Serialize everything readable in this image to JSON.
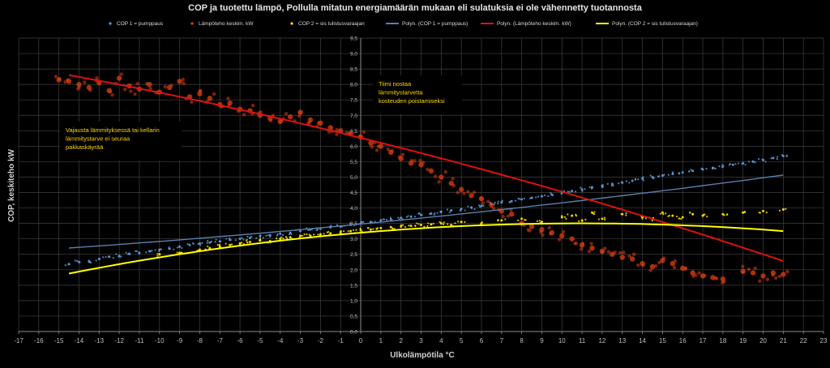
{
  "chart_data": {
    "type": "scatter",
    "title": "COP ja tuotettu lämpö, Pollulla mitatun energiamäärän mukaan eli sulatuksia ei ole vähennetty tuotannosta",
    "xlabel": "Ulkolämpötila °C",
    "ylabel": "COP, keskiteho kW",
    "xlim": [
      -17,
      23
    ],
    "ylim": [
      0,
      9.5
    ],
    "x_ticks": [
      "-17",
      "-16",
      "-15",
      "-14",
      "-13",
      "-12",
      "-11",
      "-10",
      "-9",
      "-8",
      "-7",
      "-6",
      "-5",
      "-4",
      "-3",
      "-2",
      "-1",
      "0",
      "1",
      "2",
      "3",
      "4",
      "5",
      "6",
      "7",
      "8",
      "9",
      "10",
      "11",
      "12",
      "13",
      "14",
      "15",
      "16",
      "17",
      "18",
      "19",
      "20",
      "21",
      "22",
      "23"
    ],
    "y_ticks": [
      "0,0",
      "0,5",
      "1,0",
      "1,5",
      "2,0",
      "2,5",
      "3,0",
      "3,5",
      "4,0",
      "4,5",
      "5,0",
      "5,5",
      "6,0",
      "6,5",
      "7,0",
      "7,5",
      "8,0",
      "8,5",
      "9,0",
      "9,5"
    ],
    "grid": true,
    "legend": [
      {
        "label": "COP 1 = pumppaus",
        "kind": "marker",
        "color": "#5b9bd5"
      },
      {
        "label": "Lämpöteho keskim. kW",
        "kind": "marker",
        "color": "#e04010"
      },
      {
        "label": "COP 2 = sis tulistusvaraajan",
        "kind": "marker",
        "color": "#ffe000"
      },
      {
        "label": "Polyn. (COP 1 = pumppaus)",
        "kind": "line",
        "color": "#5b7fae"
      },
      {
        "label": "Polyn. (Lämpöteho keskim. kW)",
        "kind": "line",
        "color": "#e01010"
      },
      {
        "label": "Polyn. (COP 2 = sis tulistusvaraajan)",
        "kind": "line",
        "color": "#ffff00"
      }
    ],
    "annotations": [
      {
        "lines": [
          "Vajausta lämmityksessä tai kellarin",
          "lämmitystarve ei seuraa",
          "pakkaskäyrää"
        ]
      },
      {
        "lines": [
          "Tiimi nostaa",
          "lämmitystarvetta",
          "kosteuden poistamiseksi"
        ]
      }
    ],
    "series": [
      {
        "name": "COP 1 = pumppaus",
        "color": "#5b9bd5",
        "x": [
          -14.5,
          -14,
          -13.5,
          -13,
          -12.5,
          -12,
          -11.5,
          -11,
          -10.5,
          -10,
          -9.5,
          -9,
          -8.5,
          -8,
          -7.5,
          -7,
          -6.5,
          -6,
          -5.5,
          -5,
          -4.5,
          -4,
          -3.5,
          -3,
          -2.5,
          -2,
          -1.5,
          -1,
          -0.5,
          0,
          0.5,
          1,
          1.5,
          2,
          2.5,
          3,
          3.5,
          4,
          4.5,
          5,
          5.5,
          6,
          6.5,
          7,
          7.5,
          8,
          8.5,
          9,
          9.5,
          10,
          10.5,
          11,
          11.5,
          12,
          12.5,
          13,
          13.5,
          14,
          14.5,
          15,
          15.5,
          16,
          16.5,
          17,
          17.5,
          18,
          18.5,
          19,
          19.5,
          20,
          20.5,
          21
        ],
        "y": [
          2.18,
          2.25,
          2.28,
          2.35,
          2.42,
          2.45,
          2.52,
          2.55,
          2.6,
          2.65,
          2.68,
          2.75,
          2.8,
          2.85,
          2.88,
          2.92,
          2.97,
          3.0,
          3.03,
          3.08,
          3.12,
          3.17,
          3.2,
          3.25,
          3.3,
          3.33,
          3.38,
          3.4,
          3.45,
          3.5,
          3.55,
          3.6,
          3.63,
          3.68,
          3.72,
          3.78,
          3.82,
          3.88,
          3.92,
          3.97,
          4.02,
          4.07,
          4.12,
          4.18,
          4.22,
          4.28,
          4.33,
          4.38,
          4.43,
          4.5,
          4.55,
          4.6,
          4.67,
          4.72,
          4.78,
          4.82,
          4.88,
          4.95,
          5.0,
          5.05,
          5.1,
          5.15,
          5.2,
          5.25,
          5.3,
          5.35,
          5.4,
          5.45,
          5.5,
          5.55,
          5.62,
          5.68
        ]
      },
      {
        "name": "Lämpöteho keskim. kW",
        "color": "#e04010",
        "x": [
          -15,
          -14.5,
          -14,
          -13.5,
          -13,
          -12.5,
          -12,
          -11.5,
          -11,
          -10.5,
          -10,
          -9.5,
          -9,
          -8.5,
          -8,
          -7.5,
          -7,
          -6.5,
          -6,
          -5.5,
          -5,
          -4.5,
          -4,
          -3.5,
          -3,
          -2.5,
          -2,
          -1.5,
          -1,
          -0.5,
          0,
          0.5,
          1,
          1.5,
          2,
          2.5,
          3,
          3.5,
          4,
          4.5,
          5,
          5.5,
          6,
          6.5,
          7,
          7.5,
          8,
          8.5,
          9,
          9.5,
          10,
          10.5,
          11,
          11.5,
          12,
          12.5,
          13,
          13.5,
          14,
          14.5,
          15,
          15.5,
          16,
          16.5,
          17,
          17.5,
          18,
          19,
          19.5,
          20,
          20.5,
          21
        ],
        "y": [
          8.15,
          8.1,
          8.0,
          7.9,
          8.05,
          7.8,
          8.2,
          7.95,
          7.85,
          8.0,
          7.75,
          7.9,
          8.1,
          7.6,
          7.7,
          7.55,
          7.35,
          7.4,
          7.2,
          7.15,
          7.0,
          6.9,
          6.8,
          6.95,
          7.1,
          6.85,
          6.75,
          6.6,
          6.5,
          6.4,
          6.3,
          6.1,
          6.0,
          5.8,
          5.6,
          5.45,
          5.4,
          5.2,
          5.0,
          4.8,
          4.6,
          4.4,
          4.3,
          4.1,
          3.9,
          3.8,
          3.5,
          3.4,
          3.3,
          3.2,
          3.1,
          3.0,
          2.8,
          2.7,
          2.6,
          2.5,
          2.4,
          2.35,
          2.2,
          2.1,
          2.3,
          2.2,
          2.05,
          1.9,
          1.8,
          1.75,
          1.7,
          1.95,
          1.9,
          1.8,
          1.9,
          1.85
        ]
      },
      {
        "name": "COP 2 = sis tulistusvaraajan",
        "color": "#ffe000",
        "x": [
          -10,
          -9,
          -8,
          -7.5,
          -7,
          -6.5,
          -6,
          -5.5,
          -5,
          -4.5,
          -4,
          -3.5,
          -3,
          -2.5,
          -2,
          -1.5,
          -1,
          -0.5,
          0,
          0.5,
          1,
          1.5,
          2,
          2.5,
          3,
          3.5,
          4,
          4.5,
          5,
          6,
          7,
          8,
          9,
          10,
          10.5,
          11,
          11.5,
          12,
          13,
          14,
          14.5,
          15,
          15.5,
          16,
          16.5,
          17,
          18,
          19,
          20,
          21
        ],
        "y": [
          2.5,
          2.55,
          2.65,
          2.7,
          2.75,
          2.8,
          2.85,
          2.9,
          2.95,
          2.92,
          3.0,
          3.05,
          3.1,
          3.1,
          3.15,
          3.18,
          3.2,
          3.25,
          3.28,
          3.3,
          3.35,
          3.38,
          3.4,
          3.42,
          3.45,
          3.47,
          3.5,
          3.45,
          3.55,
          3.5,
          3.6,
          3.65,
          3.55,
          3.7,
          3.75,
          3.6,
          3.85,
          3.65,
          3.8,
          3.7,
          3.65,
          3.85,
          3.75,
          3.7,
          3.8,
          3.75,
          3.8,
          3.85,
          3.9,
          3.95
        ]
      }
    ],
    "trendlines": [
      {
        "name": "Polyn. (COP 1 = pumppaus)",
        "color": "#5b7fae",
        "width": 1.4,
        "x": [
          -14.5,
          21
        ],
        "coef": [
          3.48,
          0.0625,
          0.00062
        ]
      },
      {
        "name": "Polyn. (Lämpöteho keskim. kW)",
        "color": "#dd1111",
        "width": 2,
        "x": [
          -14.5,
          21
        ],
        "coef": [
          6.27,
          -0.1605,
          -0.0014
        ]
      },
      {
        "name": "Polyn. (COP 2 = sis tulistusvaraajan)",
        "color": "#ffff00",
        "width": 2,
        "x": [
          -14.5,
          21
        ],
        "coef": [
          3.2,
          0.055,
          -0.0025
        ]
      }
    ]
  }
}
